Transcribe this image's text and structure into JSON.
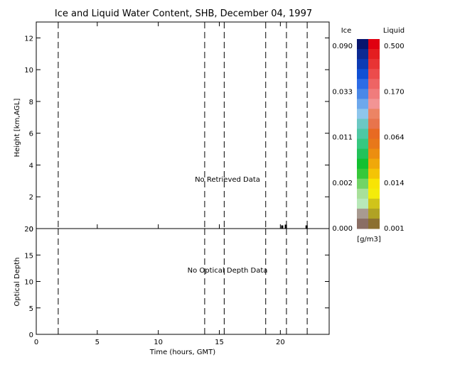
{
  "title": "Ice and Liquid Water Content, SHB, December 04, 1997",
  "chart_data": [
    {
      "panel": "water-content",
      "type": "heatmap",
      "ylabel": "Height [km,AGL]",
      "xlim": [
        0,
        24
      ],
      "ylim": [
        0,
        13
      ],
      "yticks": [
        "0",
        "2",
        "4",
        "6",
        "8",
        "10",
        "12"
      ],
      "annotation": "No Retrieved Data",
      "dashed_lines_x": [
        1.8,
        13.8,
        15.4,
        18.8,
        20.5,
        22.2
      ],
      "values": [
        {
          "x": 20.15,
          "height": 0.2
        },
        {
          "x": 20.45,
          "height": 0.25
        },
        {
          "x": 22.15,
          "height": 0.2
        }
      ]
    },
    {
      "panel": "optical-depth",
      "type": "line",
      "xlabel": "Time (hours, GMT)",
      "ylabel": "Optical Depth",
      "xlim": [
        0,
        24
      ],
      "ylim": [
        0,
        20
      ],
      "xticks": [
        "0",
        "5",
        "10",
        "15",
        "20"
      ],
      "yticks": [
        "0",
        "5",
        "10",
        "15",
        "20"
      ],
      "annotation": "No Optical Depth Data",
      "dashed_lines_x": [
        1.8,
        13.8,
        15.4,
        18.8,
        20.5,
        22.2
      ],
      "series": []
    }
  ],
  "colorbar": {
    "ice_label": "Ice",
    "liquid_label": "Liquid",
    "unit": "[g/m3]",
    "ice_ticks": [
      "0.090",
      "0.033",
      "0.011",
      "0.002",
      "0.000"
    ],
    "liquid_ticks": [
      "0.500",
      "0.170",
      "0.064",
      "0.014",
      "0.001"
    ],
    "ice_colors": [
      "#08156e",
      "#0c2a92",
      "#0d3bb4",
      "#1050d4",
      "#2d6ce6",
      "#4a88e8",
      "#6ea8ec",
      "#8ec6ec",
      "#6cc8c4",
      "#4ec8a4",
      "#36c880",
      "#22c25a",
      "#12c030",
      "#36c83a",
      "#72d466",
      "#a8e09a",
      "#b8e8b8",
      "#a89a90",
      "#8a6e64"
    ],
    "liquid_colors": [
      "#e00010",
      "#e41e20",
      "#e83434",
      "#ec4c4c",
      "#ee6464",
      "#f07c7c",
      "#f29494",
      "#ec8464",
      "#e8744c",
      "#e86a22",
      "#e8781a",
      "#ec8e10",
      "#f0a80a",
      "#f4c406",
      "#f8e404",
      "#f4ec0a",
      "#d0c41a",
      "#b0a224",
      "#8c7030"
    ]
  }
}
